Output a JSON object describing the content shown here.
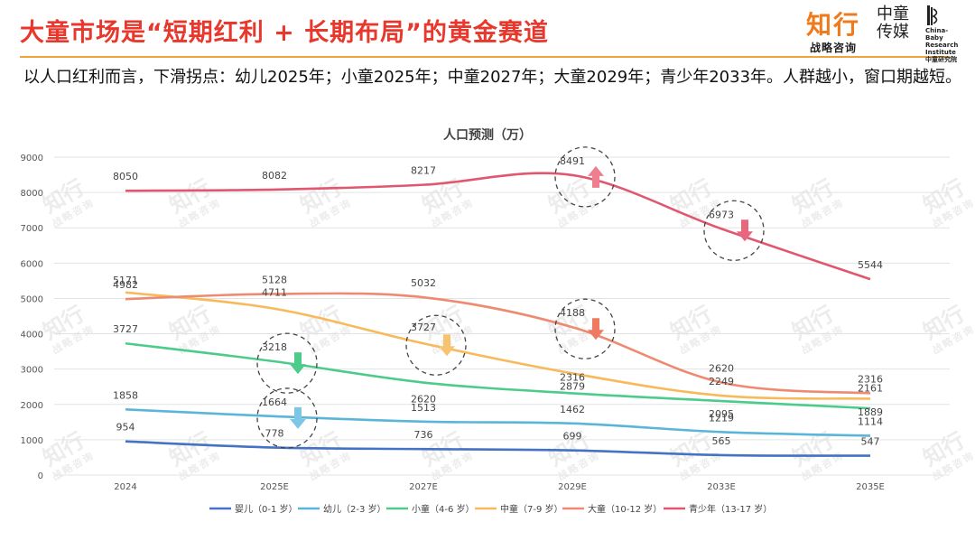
{
  "page": {
    "title": "大童市场是“短期红利 + 长期布局”的黄金赛道",
    "subtitle": "以人口红利而言，下滑拐点：幼儿2025年；小童2025年；中童2027年；大童2029年；青少年2033年。人群越小，窗口期越短。"
  },
  "logo": {
    "brand": "知行",
    "brand_sub": "战略咨询",
    "partner": "中童传媒",
    "partner_en": "China-Baby Research Institute",
    "partner_cn": "中童研究院"
  },
  "watermark": {
    "text": "知行",
    "sub": "战略咨询"
  },
  "chart_data": {
    "type": "line",
    "title": "人口预测（万）",
    "categories": [
      "2024",
      "2025E",
      "2027E",
      "2029E",
      "2033E",
      "2035E"
    ],
    "ylim": [
      0,
      9000
    ],
    "yticks": [
      0,
      1000,
      2000,
      3000,
      4000,
      5000,
      6000,
      7000,
      8000,
      9000
    ],
    "grid": true,
    "legend_position": "bottom",
    "series": [
      {
        "name": "婴儿（0-1 岁）",
        "color": "#4472c4",
        "values": [
          954,
          778,
          736,
          699,
          565,
          547
        ]
      },
      {
        "name": "幼儿（2-3 岁）",
        "color": "#5bb5d8",
        "values": [
          1858,
          1664,
          1513,
          1462,
          1219,
          1114
        ]
      },
      {
        "name": "小童（4-6 岁）",
        "color": "#4ccb8a",
        "values": [
          3727,
          3218,
          2620,
          2316,
          2095,
          1889
        ]
      },
      {
        "name": "中童（7-9 岁）",
        "color": "#f8b95a",
        "values": [
          5171,
          4711,
          3727,
          2879,
          2249,
          2161
        ]
      },
      {
        "name": "大童（10-12 岁）",
        "color": "#ef8a72",
        "values": [
          4982,
          5128,
          5032,
          4188,
          2620,
          2316
        ]
      },
      {
        "name": "青少年（13-17 岁）",
        "color": "#e05770",
        "values": [
          8050,
          8082,
          8217,
          8491,
          6973,
          5544
        ]
      }
    ],
    "annotations": [
      {
        "series": 1,
        "index": 1,
        "value": 1664,
        "arrow": "down",
        "color": "#7ec6e6"
      },
      {
        "series": 2,
        "index": 1,
        "value": 3218,
        "arrow": "down",
        "color": "#4ccb8a"
      },
      {
        "series": 3,
        "index": 2,
        "value": 3727,
        "arrow": "down",
        "color": "#f8c36e"
      },
      {
        "series": 4,
        "index": 3,
        "value": 4188,
        "arrow": "down",
        "color": "#ef7a62"
      },
      {
        "series": 5,
        "index": 3,
        "value": 8491,
        "arrow": "up",
        "color": "#ef7f8f"
      },
      {
        "series": 5,
        "index": 4,
        "value": 6973,
        "arrow": "down",
        "color": "#e8677f"
      }
    ]
  }
}
